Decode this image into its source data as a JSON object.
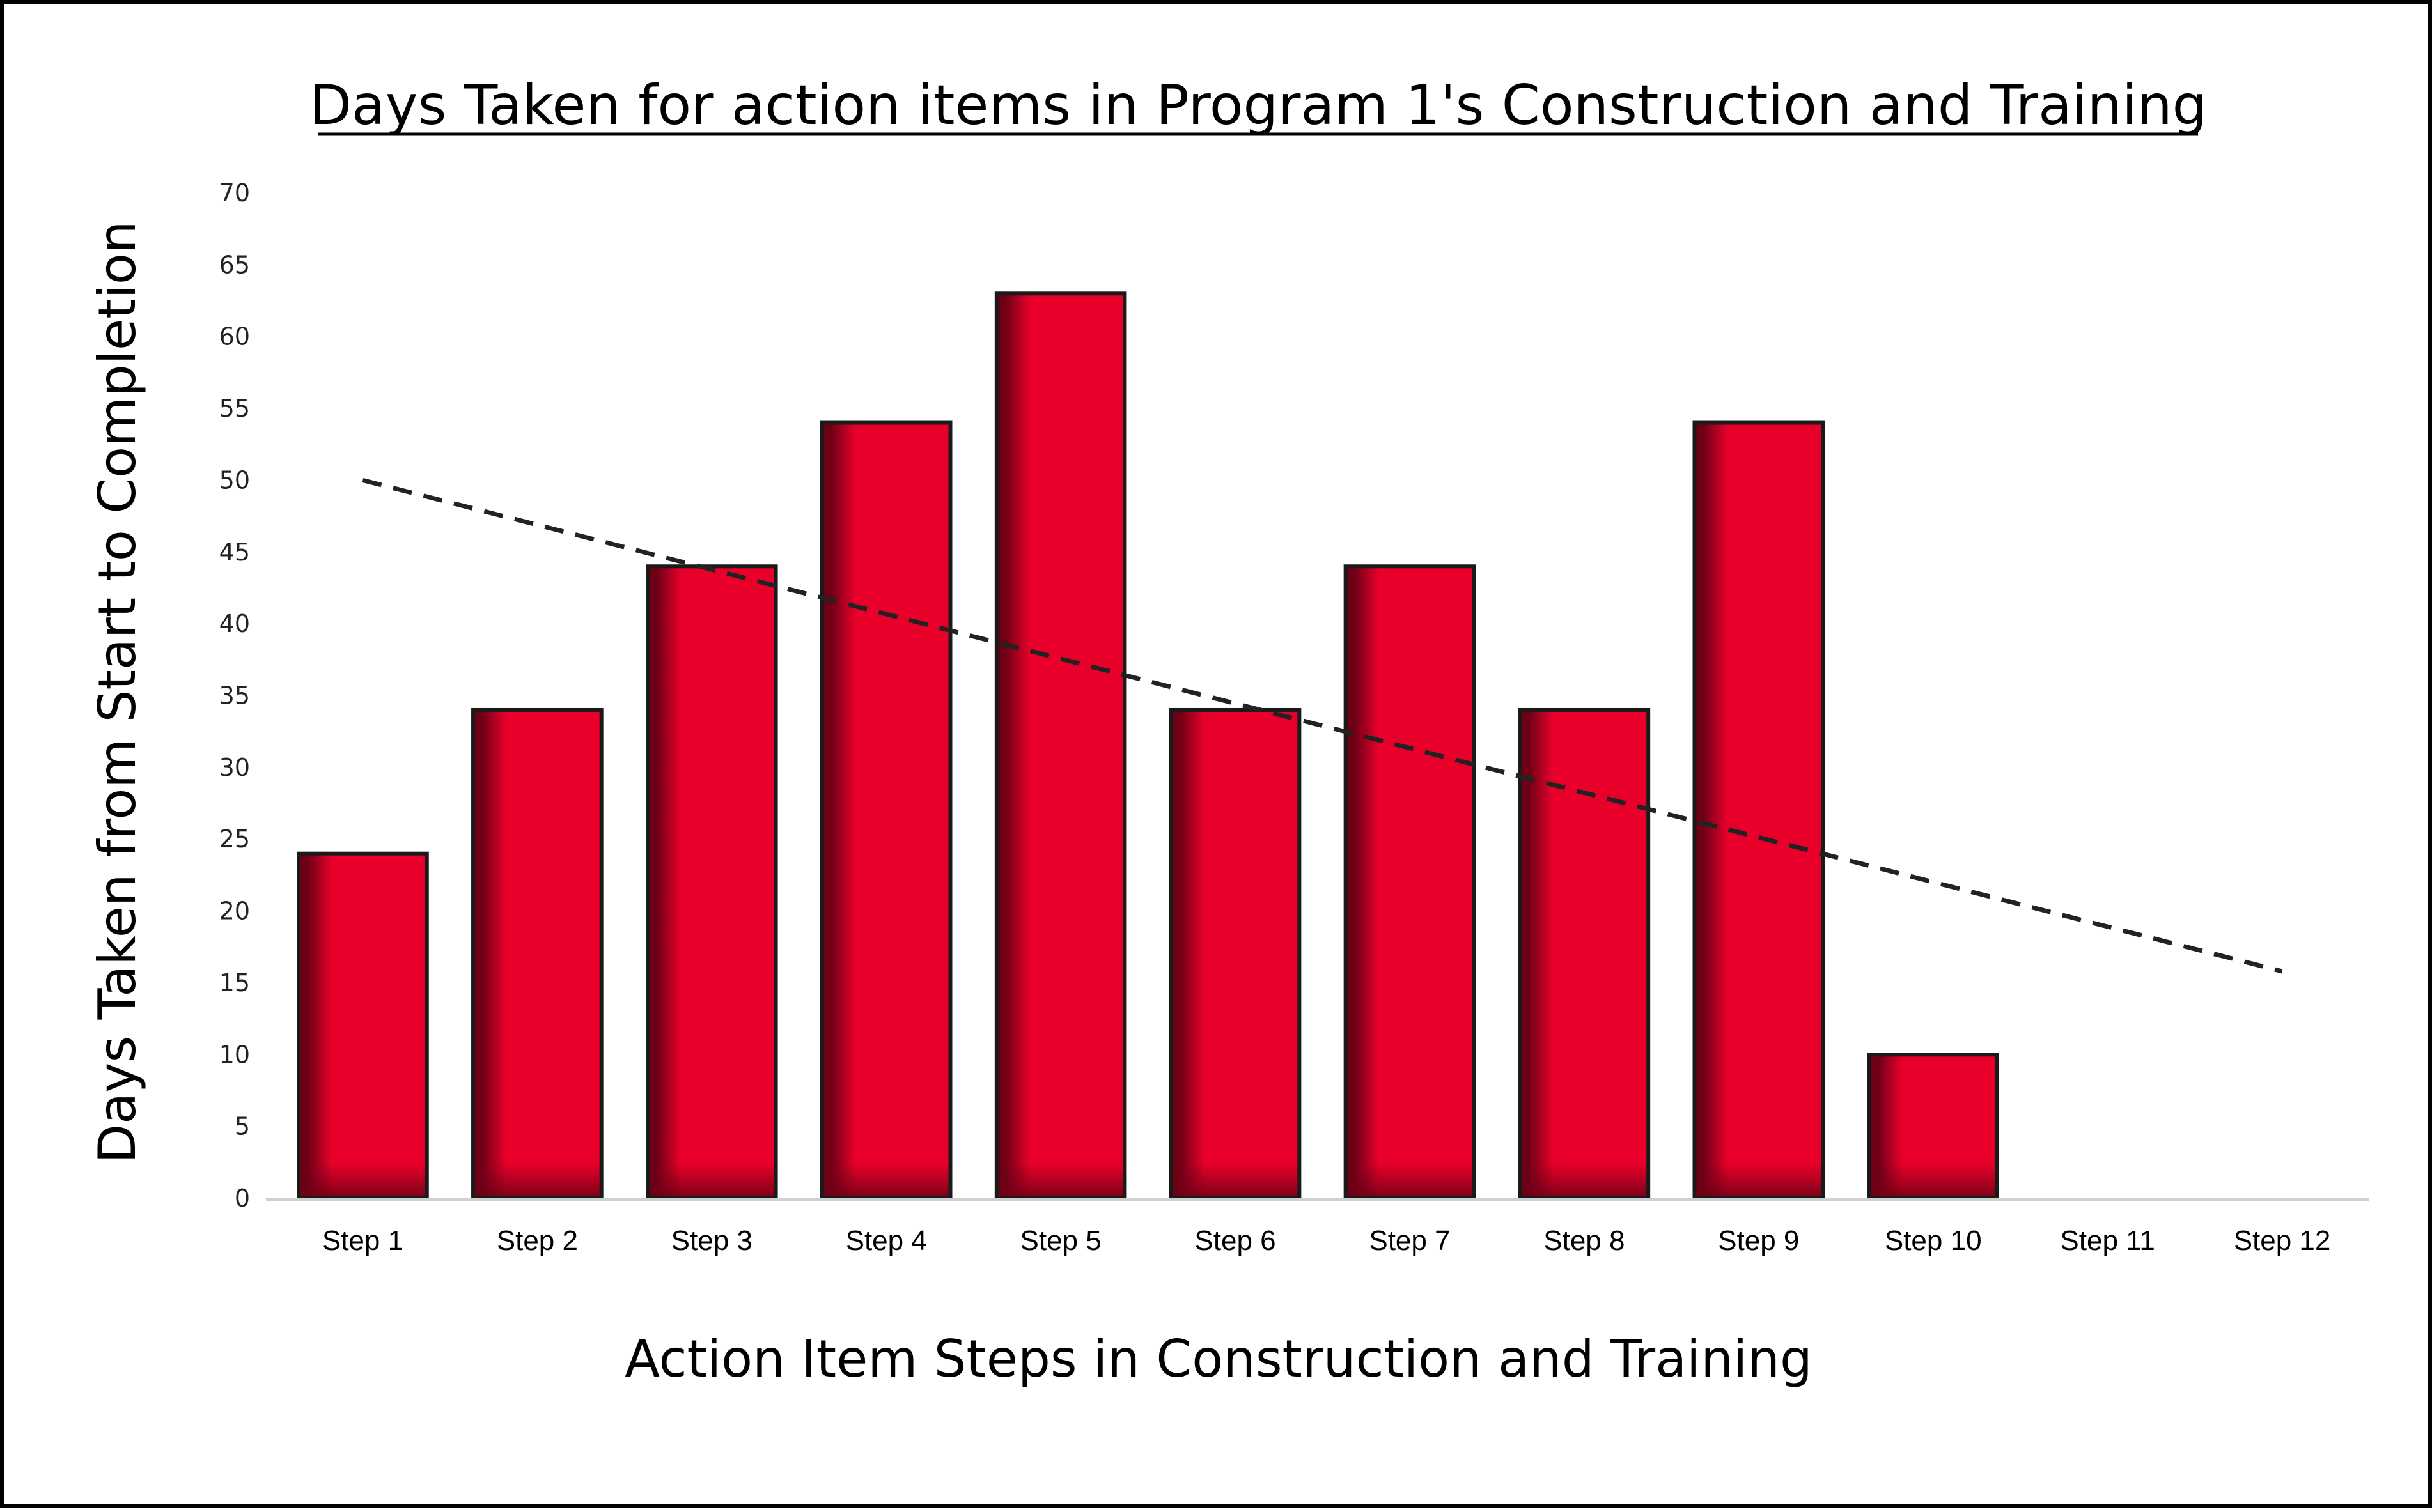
{
  "chart_data": {
    "type": "bar",
    "title": "Days Taken for action items in Program 1's Construction and Training",
    "xlabel": "Action Item Steps in Construction and Training",
    "ylabel": "Days Taken from Start to Completion",
    "categories": [
      "Step 1",
      "Step 2",
      "Step 3",
      "Step 4",
      "Step 5",
      "Step 6",
      "Step 7",
      "Step 8",
      "Step 9",
      "Step 10",
      "Step 11",
      "Step 12"
    ],
    "values": [
      24,
      34,
      44,
      54,
      63,
      34,
      44,
      34,
      54,
      10,
      0,
      0
    ],
    "ylim": [
      0,
      70
    ],
    "yticks": [
      0,
      5,
      10,
      15,
      20,
      25,
      30,
      35,
      40,
      45,
      50,
      55,
      60,
      65,
      70
    ],
    "trendline": {
      "type": "linear",
      "style": "dashed",
      "start": {
        "category": "Step 1",
        "y": 50
      },
      "end": {
        "category": "Step 12",
        "y": 15.8
      }
    },
    "grid": false,
    "legend": "none",
    "colors": {
      "bar_fill": "#e8002a",
      "bar_shade": "#6e0016",
      "bar_edge": "#1a1a1a",
      "trendline": "#222222"
    }
  }
}
